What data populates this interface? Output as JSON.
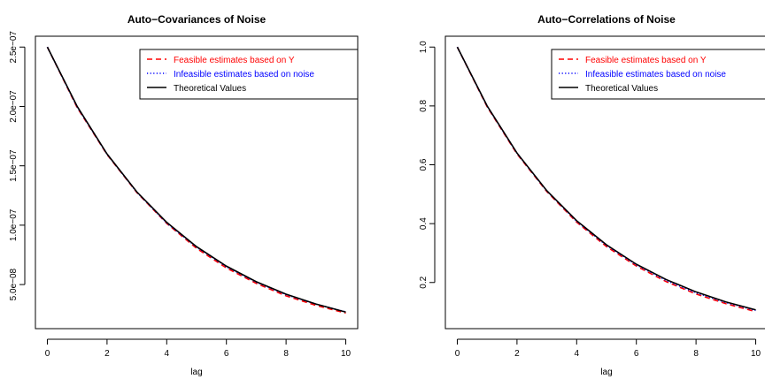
{
  "chart_data": [
    {
      "type": "line",
      "title": "Auto−Covariances of Noise",
      "xlabel": "lag",
      "ylabel": "",
      "xlim": [
        0,
        10
      ],
      "ylim": [
        2.2e-08,
        2.5e-07
      ],
      "xticks": [
        0,
        2,
        4,
        6,
        8,
        10
      ],
      "xtick_labels": [
        "0",
        "2",
        "4",
        "6",
        "8",
        "10"
      ],
      "yticks": [
        5e-08,
        1e-07,
        1.5e-07,
        2e-07,
        2.5e-07
      ],
      "ytick_labels": [
        "5.0e−08",
        "1.0e−07",
        "1.5e−07",
        "2.0e−07",
        "2.5e−07"
      ],
      "legend_position": "top-right",
      "x": [
        0,
        1,
        2,
        3,
        4,
        5,
        6,
        7,
        8,
        9,
        10
      ],
      "series": [
        {
          "name": "Feasible estimates based on Y",
          "color": "#ff0000",
          "linestyle": "dashed",
          "values": [
            2.5e-07,
            1.99e-07,
            1.595e-07,
            1.275e-07,
            1.015e-07,
            8.05e-08,
            6.4e-08,
            5.1e-08,
            4.05e-08,
            3.25e-08,
            2.6e-08
          ]
        },
        {
          "name": "Infeasible estimates based on noise",
          "color": "#0000ff",
          "linestyle": "dotted",
          "values": [
            2.5e-07,
            1.995e-07,
            1.598e-07,
            1.278e-07,
            1.018e-07,
            8.15e-08,
            6.5e-08,
            5.2e-08,
            4.15e-08,
            3.35e-08,
            2.7e-08
          ]
        },
        {
          "name": "Theoretical Values",
          "color": "#000000",
          "linestyle": "solid",
          "values": [
            2.5e-07,
            2e-07,
            1.6e-07,
            1.28e-07,
            1.024e-07,
            8.19e-08,
            6.55e-08,
            5.24e-08,
            4.19e-08,
            3.36e-08,
            2.68e-08
          ]
        }
      ]
    },
    {
      "type": "line",
      "title": "Auto−Correlations of Noise",
      "xlabel": "lag",
      "ylabel": "",
      "xlim": [
        0,
        10
      ],
      "ylim": [
        0.08,
        1.0
      ],
      "xticks": [
        0,
        2,
        4,
        6,
        8,
        10
      ],
      "xtick_labels": [
        "0",
        "2",
        "4",
        "6",
        "8",
        "10"
      ],
      "yticks": [
        0.2,
        0.4,
        0.6,
        0.8,
        1.0
      ],
      "ytick_labels": [
        "0.2",
        "0.4",
        "0.6",
        "0.8",
        "1.0"
      ],
      "legend_position": "top-right",
      "x": [
        0,
        1,
        2,
        3,
        4,
        5,
        6,
        7,
        8,
        9,
        10
      ],
      "series": [
        {
          "name": "Feasible estimates based on Y",
          "color": "#ff0000",
          "linestyle": "dashed",
          "values": [
            1.0,
            0.797,
            0.637,
            0.509,
            0.405,
            0.322,
            0.256,
            0.203,
            0.161,
            0.128,
            0.101
          ]
        },
        {
          "name": "Infeasible estimates based on noise",
          "color": "#0000ff",
          "linestyle": "dotted",
          "values": [
            1.0,
            0.799,
            0.639,
            0.511,
            0.408,
            0.326,
            0.26,
            0.207,
            0.165,
            0.132,
            0.105
          ]
        },
        {
          "name": "Theoretical Values",
          "color": "#000000",
          "linestyle": "solid",
          "values": [
            1.0,
            0.8,
            0.64,
            0.512,
            0.41,
            0.328,
            0.262,
            0.21,
            0.168,
            0.134,
            0.107
          ]
        }
      ]
    }
  ]
}
